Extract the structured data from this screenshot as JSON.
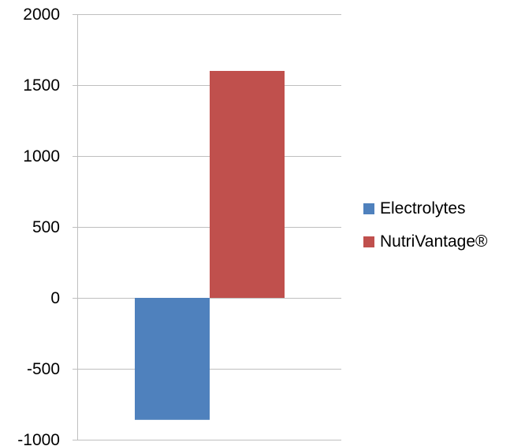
{
  "chart_data": {
    "type": "bar",
    "categories": [
      ""
    ],
    "series": [
      {
        "name": "Electrolytes",
        "values": [
          -860
        ],
        "color": "#4F81BD"
      },
      {
        "name": "NutriVantage®",
        "values": [
          1600
        ],
        "color": "#C0504D"
      }
    ],
    "ylim": [
      -1000,
      2000
    ],
    "yticks": [
      2000,
      1500,
      1000,
      500,
      0,
      -500,
      -1000
    ],
    "ytick_labels": [
      "2000",
      "1500",
      "1000",
      "500",
      "0",
      "-500",
      "-1000"
    ],
    "grid": true,
    "gridline_color": "#BFBFBF",
    "legend_position": "right"
  }
}
